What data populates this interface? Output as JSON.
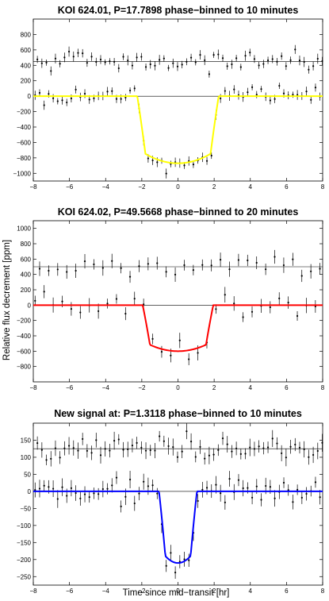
{
  "figure": {
    "ylabel": "Relative flux decrement [ppm]",
    "xlabel": "Time since mid−transit [hr]"
  },
  "chart_data": [
    {
      "type": "scatter",
      "title": "KOI 624.01, P=17.7898 phase−binned to 10 minutes",
      "xlim": [
        -8,
        8
      ],
      "ylim": [
        -1100,
        1000
      ],
      "xticks": [
        -8,
        -6,
        -4,
        -2,
        0,
        2,
        4,
        6,
        8
      ],
      "yticks": [
        -1000,
        -800,
        -600,
        -400,
        -200,
        0,
        200,
        400,
        600,
        800
      ],
      "offset": 450,
      "model_color": "#ffff00",
      "model": {
        "depth": 870,
        "half_duration": 2.25,
        "ingress": 0.45,
        "limb": 0.5
      },
      "bin_width_hr": 0.1667,
      "errorbar": 55,
      "scatter": 55,
      "grid": false,
      "legend": "none"
    },
    {
      "type": "scatter",
      "title": "KOI 624.02, P=49.5668 phase−binned to 20 minutes",
      "xlim": [
        -8,
        8
      ],
      "ylim": [
        -1000,
        1100
      ],
      "xticks": [
        -8,
        -6,
        -4,
        -2,
        0,
        2,
        4,
        6,
        8
      ],
      "yticks": [
        -800,
        -600,
        -400,
        -200,
        0,
        200,
        400,
        600,
        800,
        1000
      ],
      "offset": 500,
      "model_color": "#ff0000",
      "model": {
        "depth": 600,
        "half_duration": 1.95,
        "ingress": 0.4,
        "limb": 0.5
      },
      "bin_width_hr": 0.3333,
      "errorbar": 85,
      "scatter": 75,
      "grid": false,
      "legend": "none"
    },
    {
      "type": "scatter",
      "title": "New signal at: P=1.3118 phase−binned to 10 minutes",
      "xlim": [
        -8,
        8
      ],
      "ylim": [
        -275,
        200
      ],
      "xticks": [
        -8,
        -6,
        -4,
        -2,
        0,
        2,
        4,
        6,
        8
      ],
      "yticks": [
        -250,
        -200,
        -150,
        -100,
        -50,
        0,
        50,
        100,
        150
      ],
      "offset": 125,
      "model_color": "#0000ff",
      "model": {
        "depth": 210,
        "half_duration": 1.05,
        "ingress": 0.35,
        "limb": 0.5
      },
      "bin_width_hr": 0.1667,
      "errorbar": 22,
      "scatter": 18,
      "grid": false,
      "legend": "none"
    }
  ]
}
